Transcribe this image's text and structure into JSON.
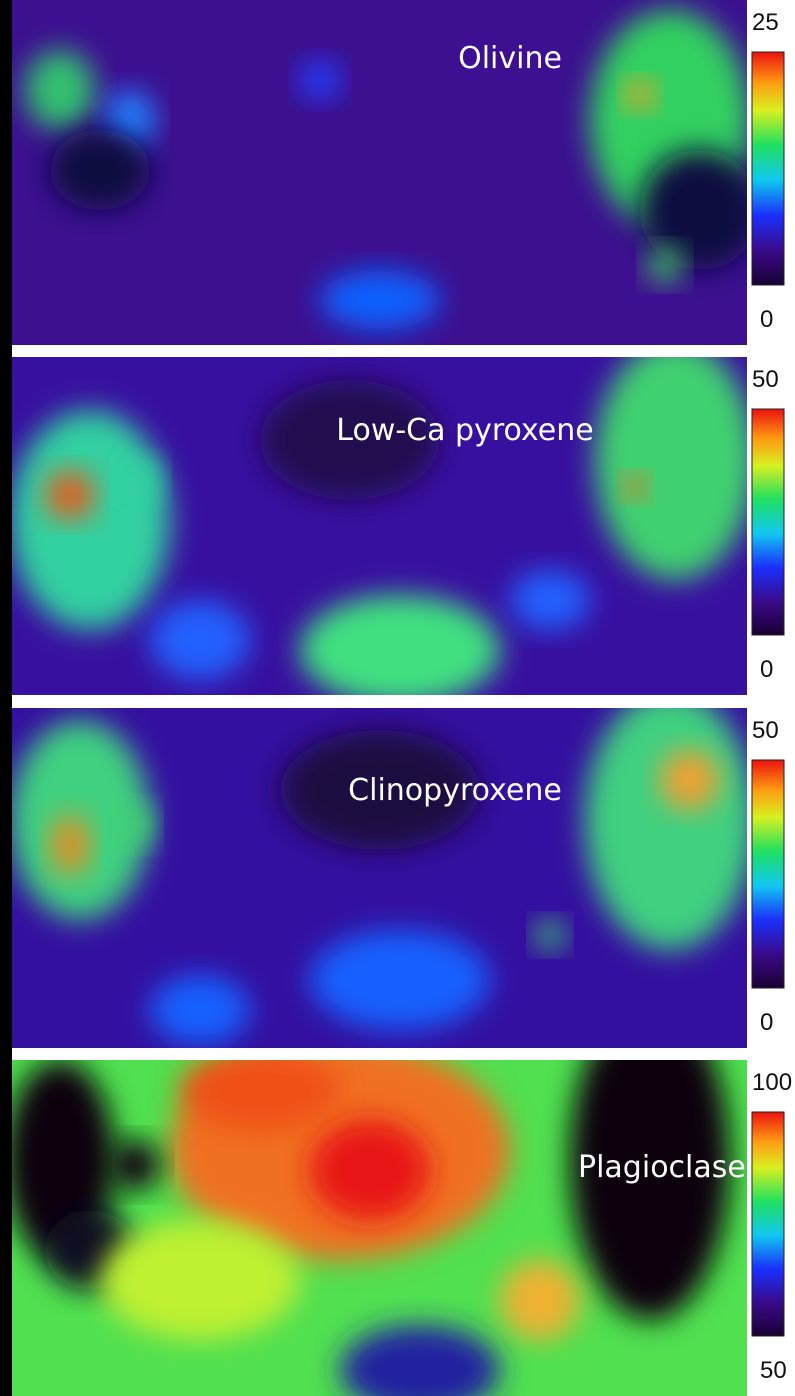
{
  "panels": [
    {
      "label": "Olivine",
      "scale_max": 25,
      "scale_min": 0
    },
    {
      "label": "Low-Ca pyroxene",
      "scale_max": 50,
      "scale_min": 0
    },
    {
      "label": "Clinopyroxene",
      "scale_max": 50,
      "scale_min": 0
    },
    {
      "label": "Plagioclase",
      "scale_max": 100,
      "scale_min": 50
    }
  ]
}
